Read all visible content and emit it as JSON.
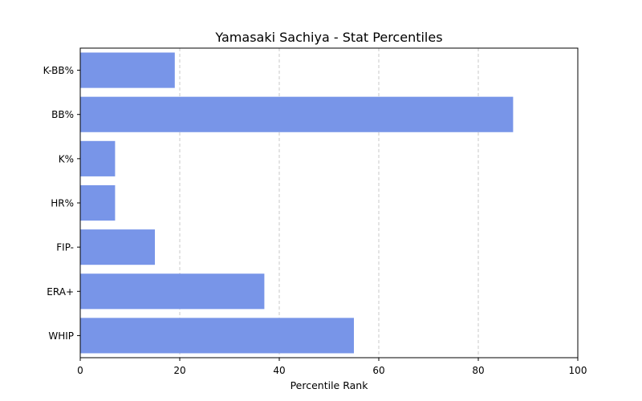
{
  "chart_data": {
    "type": "bar",
    "orientation": "horizontal",
    "title": "Yamasaki Sachiya - Stat Percentiles",
    "xlabel": "Percentile Rank",
    "ylabel": "",
    "categories": [
      "K-BB%",
      "BB%",
      "K%",
      "HR%",
      "FIP-",
      "ERA+",
      "WHIP"
    ],
    "values": [
      19,
      87,
      7,
      7,
      15,
      37,
      55
    ],
    "xlim": [
      0,
      100
    ],
    "xticks": [
      0,
      20,
      40,
      60,
      80,
      100
    ],
    "grid": "x-dashed",
    "bar_color": "#7895e8"
  }
}
